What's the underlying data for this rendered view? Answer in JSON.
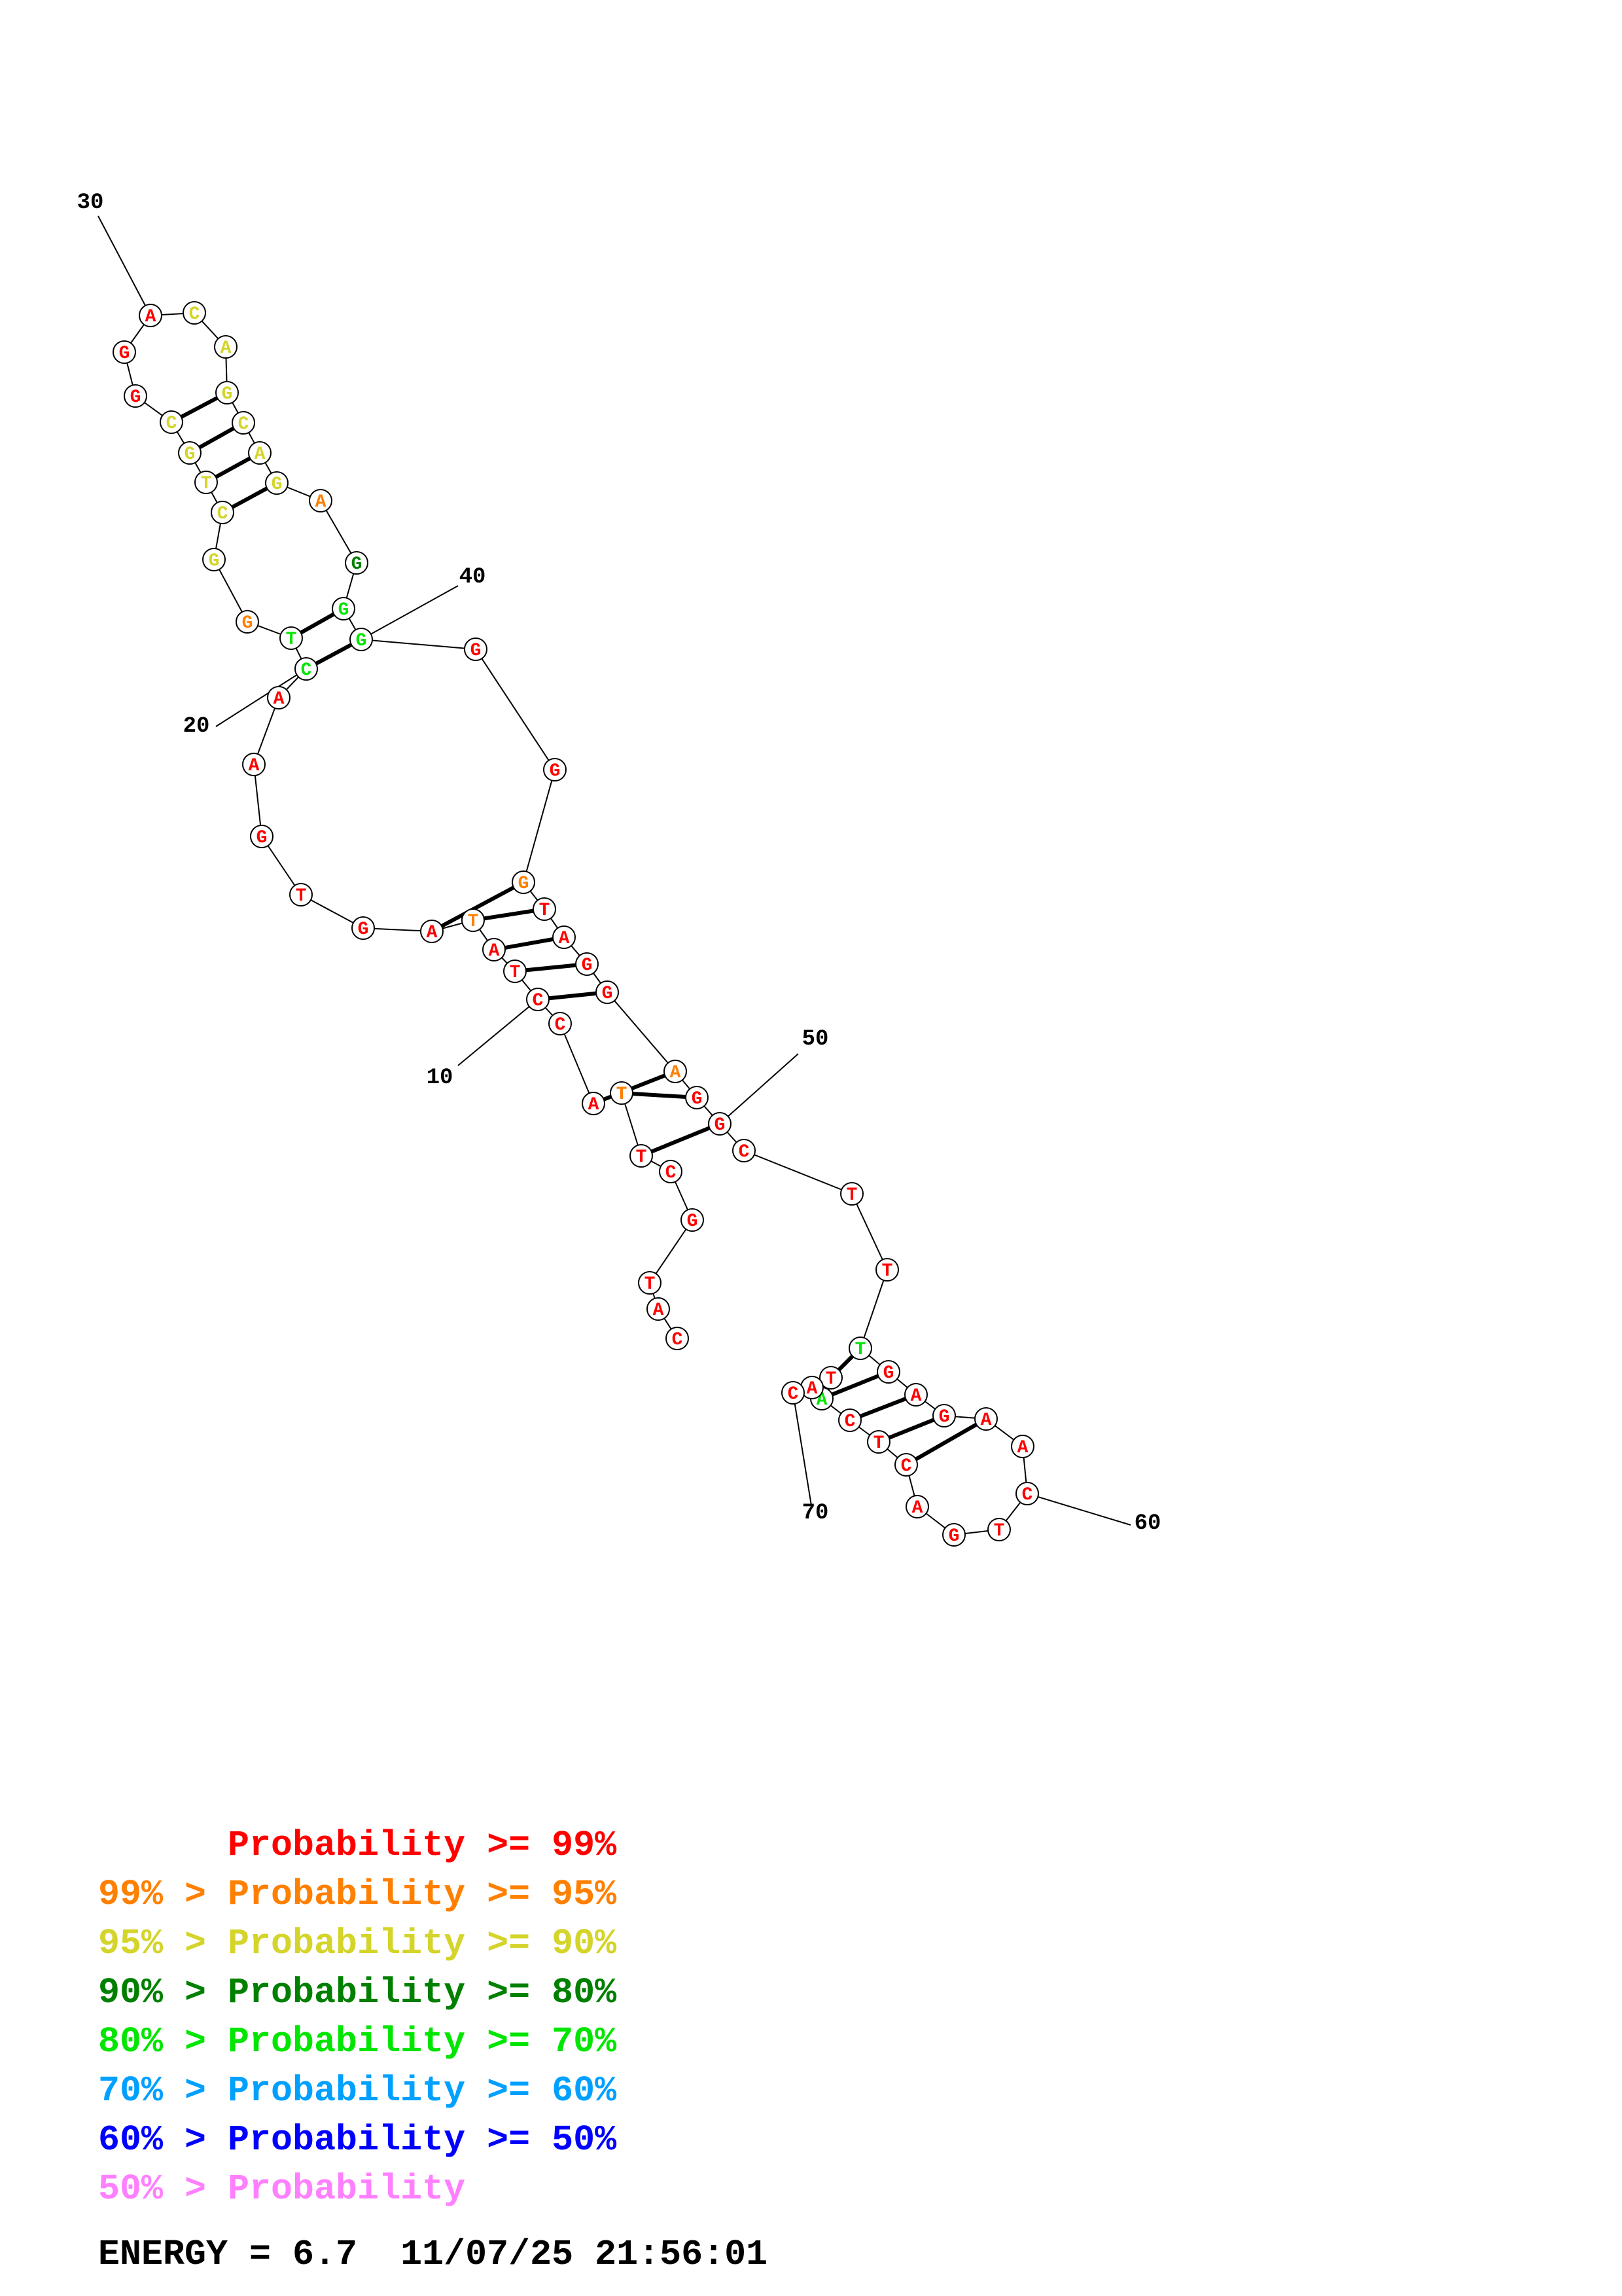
{
  "diagram": {
    "type": "rna-secondary-structure",
    "nucleotides": [
      {
        "index": 1,
        "base": "C",
        "prob": "p99"
      },
      {
        "index": 2,
        "base": "A",
        "prob": "p99"
      },
      {
        "index": 3,
        "base": "T",
        "prob": "p99"
      },
      {
        "index": 4,
        "base": "G",
        "prob": "p99"
      },
      {
        "index": 5,
        "base": "C",
        "prob": "p99"
      },
      {
        "index": 6,
        "base": "T",
        "prob": "p99"
      },
      {
        "index": 7,
        "base": "T",
        "prob": "p95"
      },
      {
        "index": 8,
        "base": "A",
        "prob": "p99"
      },
      {
        "index": 9,
        "base": "C",
        "prob": "p99"
      },
      {
        "index": 10,
        "base": "C",
        "prob": "p99"
      },
      {
        "index": 11,
        "base": "T",
        "prob": "p99"
      },
      {
        "index": 12,
        "base": "A",
        "prob": "p99"
      },
      {
        "index": 13,
        "base": "T",
        "prob": "p95"
      },
      {
        "index": 14,
        "base": "A",
        "prob": "p99"
      },
      {
        "index": 15,
        "base": "G",
        "prob": "p99"
      },
      {
        "index": 16,
        "base": "T",
        "prob": "p99"
      },
      {
        "index": 17,
        "base": "G",
        "prob": "p99"
      },
      {
        "index": 18,
        "base": "A",
        "prob": "p99"
      },
      {
        "index": 19,
        "base": "A",
        "prob": "p99"
      },
      {
        "index": 20,
        "base": "C",
        "prob": "p70"
      },
      {
        "index": 21,
        "base": "T",
        "prob": "p70"
      },
      {
        "index": 22,
        "base": "G",
        "prob": "p95"
      },
      {
        "index": 23,
        "base": "G",
        "prob": "p90"
      },
      {
        "index": 24,
        "base": "C",
        "prob": "p90"
      },
      {
        "index": 25,
        "base": "T",
        "prob": "p90"
      },
      {
        "index": 26,
        "base": "G",
        "prob": "p90"
      },
      {
        "index": 27,
        "base": "C",
        "prob": "p90"
      },
      {
        "index": 28,
        "base": "G",
        "prob": "p99"
      },
      {
        "index": 29,
        "base": "G",
        "prob": "p99"
      },
      {
        "index": 30,
        "base": "A",
        "prob": "p99"
      },
      {
        "index": 31,
        "base": "C",
        "prob": "p90"
      },
      {
        "index": 32,
        "base": "A",
        "prob": "p90"
      },
      {
        "index": 33,
        "base": "G",
        "prob": "p90"
      },
      {
        "index": 34,
        "base": "C",
        "prob": "p90"
      },
      {
        "index": 35,
        "base": "A",
        "prob": "p90"
      },
      {
        "index": 36,
        "base": "G",
        "prob": "p90"
      },
      {
        "index": 37,
        "base": "A",
        "prob": "p95"
      },
      {
        "index": 38,
        "base": "G",
        "prob": "p80"
      },
      {
        "index": 39,
        "base": "G",
        "prob": "p70"
      },
      {
        "index": 40,
        "base": "G",
        "prob": "p70"
      },
      {
        "index": 41,
        "base": "G",
        "prob": "p99"
      },
      {
        "index": 42,
        "base": "G",
        "prob": "p99"
      },
      {
        "index": 43,
        "base": "G",
        "prob": "p95"
      },
      {
        "index": 44,
        "base": "T",
        "prob": "p99"
      },
      {
        "index": 45,
        "base": "A",
        "prob": "p99"
      },
      {
        "index": 46,
        "base": "G",
        "prob": "p99"
      },
      {
        "index": 47,
        "base": "G",
        "prob": "p99"
      },
      {
        "index": 48,
        "base": "A",
        "prob": "p95"
      },
      {
        "index": 49,
        "base": "G",
        "prob": "p99"
      },
      {
        "index": 50,
        "base": "G",
        "prob": "p99"
      },
      {
        "index": 51,
        "base": "C",
        "prob": "p99"
      },
      {
        "index": 52,
        "base": "T",
        "prob": "p99"
      },
      {
        "index": 53,
        "base": "T",
        "prob": "p99"
      },
      {
        "index": 54,
        "base": "T",
        "prob": "p70"
      },
      {
        "index": 55,
        "base": "G",
        "prob": "p99"
      },
      {
        "index": 56,
        "base": "A",
        "prob": "p99"
      },
      {
        "index": 57,
        "base": "G",
        "prob": "p99"
      },
      {
        "index": 58,
        "base": "A",
        "prob": "p99"
      },
      {
        "index": 59,
        "base": "A",
        "prob": "p99"
      },
      {
        "index": 60,
        "base": "C",
        "prob": "p99"
      },
      {
        "index": 61,
        "base": "T",
        "prob": "p99"
      },
      {
        "index": 62,
        "base": "G",
        "prob": "p99"
      },
      {
        "index": 63,
        "base": "A",
        "prob": "p99"
      },
      {
        "index": 64,
        "base": "C",
        "prob": "p99"
      },
      {
        "index": 65,
        "base": "T",
        "prob": "p99"
      },
      {
        "index": 66,
        "base": "C",
        "prob": "p99"
      },
      {
        "index": 67,
        "base": "A",
        "prob": "p70"
      },
      {
        "index": 68,
        "base": "T",
        "prob": "p99"
      },
      {
        "index": 69,
        "base": "A",
        "prob": "p99"
      },
      {
        "index": 70,
        "base": "C",
        "prob": "p99"
      }
    ],
    "pairs": [
      [
        6,
        50
      ],
      [
        7,
        49
      ],
      [
        8,
        48
      ],
      [
        10,
        47
      ],
      [
        11,
        46
      ],
      [
        12,
        45
      ],
      [
        13,
        44
      ],
      [
        14,
        43
      ],
      [
        20,
        40
      ],
      [
        21,
        39
      ],
      [
        24,
        36
      ],
      [
        25,
        35
      ],
      [
        26,
        34
      ],
      [
        27,
        33
      ],
      [
        54,
        68
      ],
      [
        55,
        67
      ],
      [
        56,
        66
      ],
      [
        57,
        65
      ],
      [
        58,
        64
      ]
    ],
    "index_labels": [
      "10",
      "20",
      "30",
      "40",
      "50",
      "60",
      "70"
    ]
  },
  "legend": {
    "colors": {
      "p99": "#ff0000",
      "p95": "#ff8000",
      "p90": "#d4d42a",
      "p80": "#008000",
      "p70": "#00e600",
      "p60": "#00a0ff",
      "p50": "#0000ff",
      "p0": "#ff80ff"
    },
    "lines": [
      {
        "key": "p99",
        "text": "      Probability >= 99%"
      },
      {
        "key": "p95",
        "text": "99% > Probability >= 95%"
      },
      {
        "key": "p90",
        "text": "95% > Probability >= 90%"
      },
      {
        "key": "p80",
        "text": "90% > Probability >= 80%"
      },
      {
        "key": "p70",
        "text": "80% > Probability >= 70%"
      },
      {
        "key": "p60",
        "text": "70% > Probability >= 60%"
      },
      {
        "key": "p50",
        "text": "60% > Probability >= 50%"
      },
      {
        "key": "p0",
        "text": "50% > Probability"
      }
    ]
  },
  "footer": {
    "energy": "ENERGY = 6.7  11/07/25 21:56:01"
  }
}
